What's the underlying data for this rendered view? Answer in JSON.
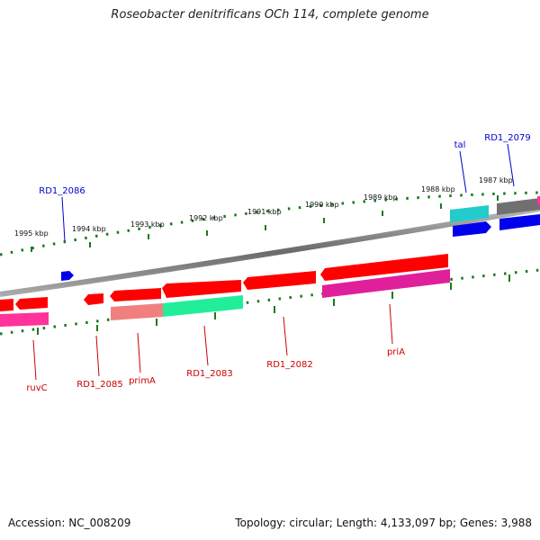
{
  "title": "Roseobacter denitrificans OCh 114, complete genome",
  "footer": {
    "accession": "Accession: NC_008209",
    "summary": "Topology: circular; Length: 4,133,097 bp; Genes: 3,988"
  },
  "ruler": {
    "ticks": [
      {
        "label": "1995 kbp"
      },
      {
        "label": "1994 kbp"
      },
      {
        "label": "1993 kbp"
      },
      {
        "label": "1992 kbp"
      },
      {
        "label": "1991 kbp"
      },
      {
        "label": "1990 kbp"
      },
      {
        "label": "1989 kbp"
      },
      {
        "label": "1988 kbp"
      },
      {
        "label": "1987 kbp"
      }
    ]
  },
  "gene_labels": [
    {
      "name": "ruvC",
      "strand": "minus"
    },
    {
      "name": "RD1_2085",
      "strand": "minus"
    },
    {
      "name": "primA",
      "strand": "minus"
    },
    {
      "name": "RD1_2083",
      "strand": "minus"
    },
    {
      "name": "RD1_2082",
      "strand": "minus"
    },
    {
      "name": "priA",
      "strand": "minus"
    },
    {
      "name": "RD1_2086",
      "strand": "plus"
    },
    {
      "name": "tal",
      "strand": "plus"
    },
    {
      "name": "RD1_2079",
      "strand": "plus"
    }
  ],
  "colors": {
    "plus_label": "#0000cc",
    "minus_label": "#cc0000",
    "tick": "#1a7a1a",
    "backbone": "#888888",
    "gene_red": "#ff0000",
    "gene_blue": "#0000ee",
    "gene_pink": "#ff3399",
    "gene_magenta": "#e0209a",
    "gene_green": "#22ee99",
    "gene_salmon": "#f08080",
    "gene_cyan": "#22cccc",
    "gene_gray": "#707070"
  }
}
